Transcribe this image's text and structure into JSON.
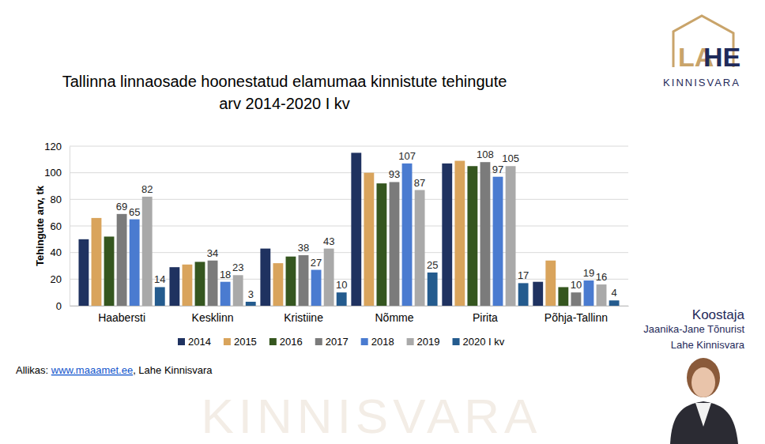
{
  "chart_data": {
    "type": "bar",
    "title": [
      "Tallinna linnaosade hoonestatud elamumaa kinnistute tehingute",
      "arv 2014-2020 I kv"
    ],
    "y_label": "Tehingute arv, tk",
    "categories": [
      "Haabersti",
      "Kesklinn",
      "Kristiine",
      "Nõmme",
      "Pirita",
      "Põhja-Tallinn"
    ],
    "series": [
      {
        "name": "2014",
        "color": "#1f3260",
        "data_labels": false,
        "values": [
          50,
          29,
          43,
          115,
          107,
          18
        ]
      },
      {
        "name": "2015",
        "color": "#d9a45c",
        "data_labels": false,
        "values": [
          66,
          31,
          32,
          100,
          109,
          34
        ]
      },
      {
        "name": "2016",
        "color": "#35561f",
        "data_labels": false,
        "values": [
          52,
          33,
          37,
          92,
          105,
          14
        ]
      },
      {
        "name": "2017",
        "color": "#7b7b7b",
        "data_labels": true,
        "values": [
          69,
          34,
          38,
          93,
          108,
          10
        ]
      },
      {
        "name": "2018",
        "color": "#4a7bd0",
        "data_labels": true,
        "values": [
          65,
          18,
          27,
          107,
          97,
          19
        ]
      },
      {
        "name": "2019",
        "color": "#a9a9a9",
        "data_labels": true,
        "values": [
          82,
          23,
          43,
          87,
          105,
          16
        ]
      },
      {
        "name": "2020 I kv",
        "color": "#245b8e",
        "data_labels": true,
        "values": [
          14,
          3,
          10,
          25,
          17,
          4
        ]
      }
    ],
    "ylim": [
      0,
      120
    ],
    "yticks": [
      0,
      20,
      40,
      60,
      80,
      100,
      120
    ],
    "grid": true,
    "legend": "bottom",
    "source": {
      "label": "Allikas: ",
      "link": "www.maaamet.ee",
      "rest": ", Lahe Kinnisvara"
    },
    "logo": {
      "left": "LA",
      "right": "HE",
      "sub": "KINNISVARA"
    },
    "author": {
      "heading": "Koostaja",
      "name": "Jaanika-Jane Tõnurist",
      "company": "Lahe Kinnisvara"
    },
    "watermark": "KINNISVARA"
  }
}
